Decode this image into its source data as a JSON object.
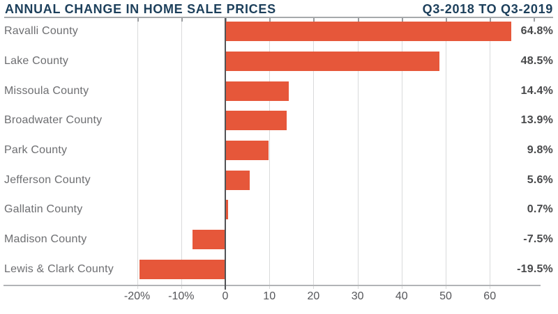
{
  "header": {
    "title": "ANNUAL CHANGE IN HOME SALE PRICES",
    "period": "Q3-2018 TO Q3-2019"
  },
  "chart_data": {
    "type": "bar",
    "orientation": "horizontal",
    "title": "ANNUAL CHANGE IN HOME SALE PRICES",
    "subtitle": "Q3-2018 TO Q3-2019",
    "xlabel": "",
    "ylabel": "",
    "units": "percent",
    "categories": [
      "Ravalli County",
      "Lake County",
      "Missoula County",
      "Broadwater County",
      "Park County",
      "Jefferson County",
      "Gallatin County",
      "Madison County",
      "Lewis & Clark County"
    ],
    "values": [
      64.8,
      48.5,
      14.4,
      13.9,
      9.8,
      5.6,
      0.7,
      -7.5,
      -19.5
    ],
    "value_labels": [
      "64.8%",
      "48.5%",
      "14.4%",
      "13.9%",
      "9.8%",
      "5.6%",
      "0.7%",
      "-7.5%",
      "-19.5%"
    ],
    "xlim": [
      -26,
      75
    ],
    "x_ticks": [
      {
        "value": -20,
        "label": "-20%"
      },
      {
        "value": -10,
        "label": "-10%"
      },
      {
        "value": 0,
        "label": "0"
      },
      {
        "value": 10,
        "label": "10"
      },
      {
        "value": 20,
        "label": "20"
      },
      {
        "value": 30,
        "label": "30"
      },
      {
        "value": 40,
        "label": "40"
      },
      {
        "value": 50,
        "label": "50"
      },
      {
        "value": 60,
        "label": "60"
      }
    ],
    "top_tick_values": [
      -20,
      -10,
      0,
      10,
      20,
      30,
      40,
      50,
      60,
      70
    ],
    "grid": true,
    "legend": "none",
    "colors": {
      "bar": "#E6573A",
      "title": "#1C3F5B",
      "category_label": "#6D6E71",
      "value_label": "#47484A",
      "tick_label": "#55565A",
      "gridline": "#D9DADB",
      "zero_line": "#515356",
      "axis_line": "#B2B4B6",
      "header_rule": "#A6A9AB"
    }
  }
}
